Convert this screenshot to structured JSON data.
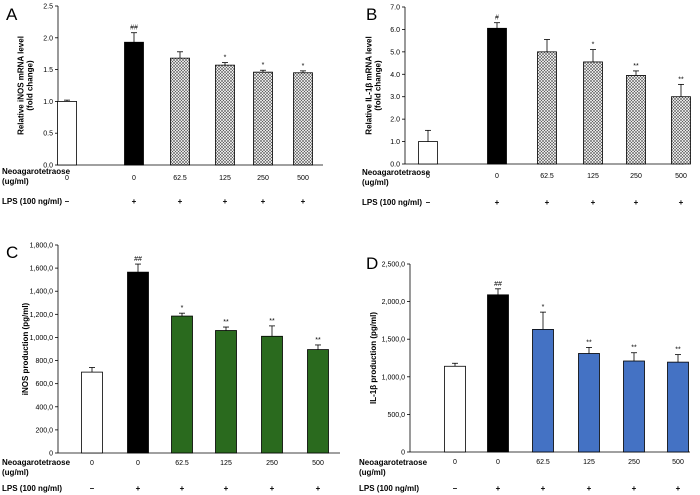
{
  "chart_data": [
    {
      "type": "bar",
      "panel": "A",
      "ylabel": "Relative iNOS mRNA level\n(fold change)",
      "ylim": [
        0,
        2.5
      ],
      "yticks": [
        "0.0",
        "0.5",
        "1.0",
        "1.5",
        "2.0",
        "2.5"
      ],
      "categories": [
        "0",
        "0",
        "62.5",
        "125",
        "250",
        "500"
      ],
      "values": [
        1.0,
        1.93,
        1.68,
        1.57,
        1.46,
        1.45
      ],
      "errors": [
        0.02,
        0.15,
        0.1,
        0.04,
        0.03,
        0.03
      ],
      "significance": [
        "",
        "##",
        "",
        "*",
        "*",
        "*"
      ],
      "fills": [
        "white",
        "black",
        "hatch",
        "hatch",
        "hatch",
        "hatch"
      ],
      "lps": [
        "–",
        "+",
        "+",
        "+",
        "+",
        "+"
      ]
    },
    {
      "type": "bar",
      "panel": "B",
      "ylabel": "Relative IL-1β mRNA level\n(fold change)",
      "ylim": [
        0,
        7.0
      ],
      "yticks": [
        "0.0",
        "1.0",
        "2.0",
        "3.0",
        "4.0",
        "5.0",
        "6.0",
        "7.0"
      ],
      "categories": [
        "0",
        "0",
        "62.5",
        "125",
        "250",
        "500"
      ],
      "values": [
        1.0,
        6.05,
        5.0,
        4.55,
        3.95,
        3.0
      ],
      "errors": [
        0.5,
        0.25,
        0.55,
        0.55,
        0.2,
        0.55
      ],
      "significance": [
        "",
        "#",
        "",
        "*",
        "**",
        "**"
      ],
      "fills": [
        "white",
        "black",
        "hatch",
        "hatch",
        "hatch",
        "hatch"
      ],
      "lps": [
        "–",
        "+",
        "+",
        "+",
        "+",
        "+"
      ]
    },
    {
      "type": "bar",
      "panel": "C",
      "ylabel": "iNOS production (pg/ml)",
      "ylim": [
        0,
        1800
      ],
      "yticks": [
        "0",
        "200,0",
        "400,0",
        "600,0",
        "800,0",
        "1,000,0",
        "1,200,0",
        "1,400,0",
        "1,600,0",
        "1,800,0"
      ],
      "categories": [
        "0",
        "0",
        "62.5",
        "125",
        "250",
        "500"
      ],
      "values": [
        700,
        1565,
        1185,
        1060,
        1010,
        895
      ],
      "errors": [
        40,
        70,
        25,
        30,
        90,
        40
      ],
      "significance": [
        "",
        "##",
        "*",
        "**",
        "**",
        "**"
      ],
      "fills": [
        "white",
        "black",
        "#2a6a1e",
        "#2a6a1e",
        "#2a6a1e",
        "#2a6a1e"
      ],
      "lps": [
        "–",
        "+",
        "+",
        "+",
        "+",
        "+"
      ]
    },
    {
      "type": "bar",
      "panel": "D",
      "ylabel": "IL-1β production (pg/ml)",
      "ylim": [
        0,
        2500
      ],
      "yticks": [
        "0",
        "500,0",
        "1,000,0",
        "1,500,0",
        "2,000,0",
        "2,500,0"
      ],
      "categories": [
        "0",
        "0",
        "62.5",
        "125",
        "250",
        "500"
      ],
      "values": [
        1140,
        2090,
        1630,
        1310,
        1210,
        1195
      ],
      "errors": [
        40,
        80,
        230,
        80,
        110,
        100
      ],
      "significance": [
        "",
        "##",
        "*",
        "**",
        "**",
        "**"
      ],
      "fills": [
        "white",
        "black",
        "#4472c4",
        "#4472c4",
        "#4472c4",
        "#4472c4"
      ],
      "lps": [
        "–",
        "+",
        "+",
        "+",
        "+",
        "+"
      ]
    }
  ],
  "row_label": "Neoagarotetraose\n(ug/ml)",
  "lps_label": "LPS (100 ng/ml)",
  "colors": {
    "axis": "#000000",
    "hatch": "#555555",
    "green": "#2a6a1e",
    "blue": "#4472c4"
  }
}
